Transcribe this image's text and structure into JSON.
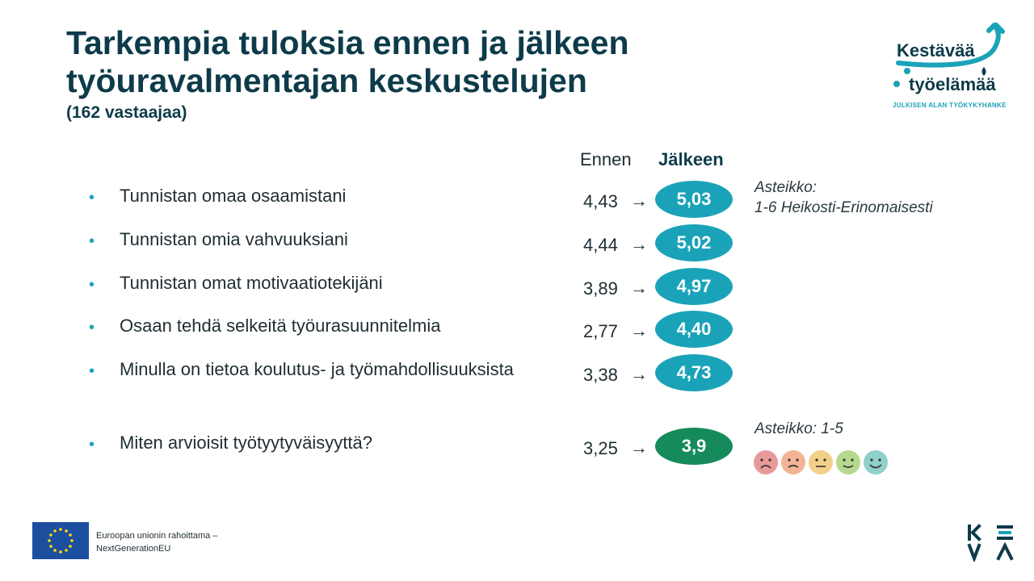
{
  "header": {
    "title_line1": "Tarkempia tuloksia ennen ja jälkeen",
    "title_line2": "työuravalmentajan keskustelujen",
    "subtitle": "(162 vastaajaa)"
  },
  "columns": {
    "before": "Ennen",
    "after": "Jälkeen"
  },
  "rows": [
    {
      "label": "Tunnistan omaa osaamistani",
      "before": "4,43",
      "after": "5,03"
    },
    {
      "label": "Tunnistan omia vahvuuksiani",
      "before": "4,44",
      "after": "5,02"
    },
    {
      "label": "Tunnistan omat motivaatiotekijäni",
      "before": "3,89",
      "after": "4,97"
    },
    {
      "label": "Osaan tehdä selkeitä työurasuunnitelmia",
      "before": "2,77",
      "after": "4,40"
    },
    {
      "label": "Minulla on tietoa koulutus- ja työmahdollisuuksista",
      "before": "3,38",
      "after": "4,73"
    }
  ],
  "satisfaction": {
    "label": "Miten arvioisit työtyytyväisyyttä?",
    "before": "3,25",
    "after": "3,9"
  },
  "scale_note_1": {
    "line1": "Asteikko:",
    "line2": "1-6 Heikosti-Erinomaisesti"
  },
  "scale_note_2": "Asteikko: 1-5",
  "symbols": {
    "bullet": "•",
    "arrow": "→"
  },
  "logo": {
    "line1": "Kestävää",
    "line2": "työelämää",
    "tagline": "JULKISEN ALAN TYÖKYKYHANKE"
  },
  "footer": {
    "eu_line1": "Euroopan unionin rahoittama –",
    "eu_line2": "NextGenerationEU",
    "keva": "KEVA"
  },
  "colors": {
    "accent": "#1aa3b8",
    "green": "#168a5a",
    "title": "#0d3b4a"
  },
  "faces": [
    "sad-face-icon",
    "unhappy-face-icon",
    "neutral-face-icon",
    "content-face-icon",
    "happy-face-icon"
  ]
}
